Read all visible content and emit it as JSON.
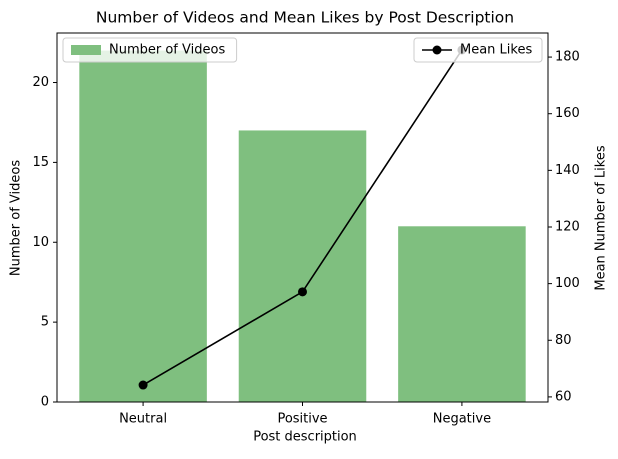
{
  "chart_data": {
    "type": "bar",
    "title": "Number of Videos and Mean Likes by Post Description",
    "xlabel": "Post description",
    "ylabel": "Number of Videos",
    "y2label": "Mean Number of Likes",
    "categories": [
      "Neutral",
      "Positive",
      "Negative"
    ],
    "series": [
      {
        "name": "Number of Videos",
        "type": "bar",
        "color": "#7fbf7f",
        "values": [
          22,
          17,
          11
        ],
        "axis": "y",
        "legend_loc": "upper left"
      },
      {
        "name": "Mean Likes",
        "type": "line",
        "color": "#000000",
        "values": [
          64.2,
          97.1,
          182.5
        ],
        "axis": "y2",
        "legend_loc": "upper right"
      }
    ],
    "ylim": [
      0,
      23.1
    ],
    "yticks": [
      0,
      5,
      10,
      15,
      20
    ],
    "y2lim": [
      58.2,
      188.5
    ],
    "y2ticks": [
      60,
      80,
      100,
      120,
      140,
      160,
      180
    ],
    "grid": false
  }
}
